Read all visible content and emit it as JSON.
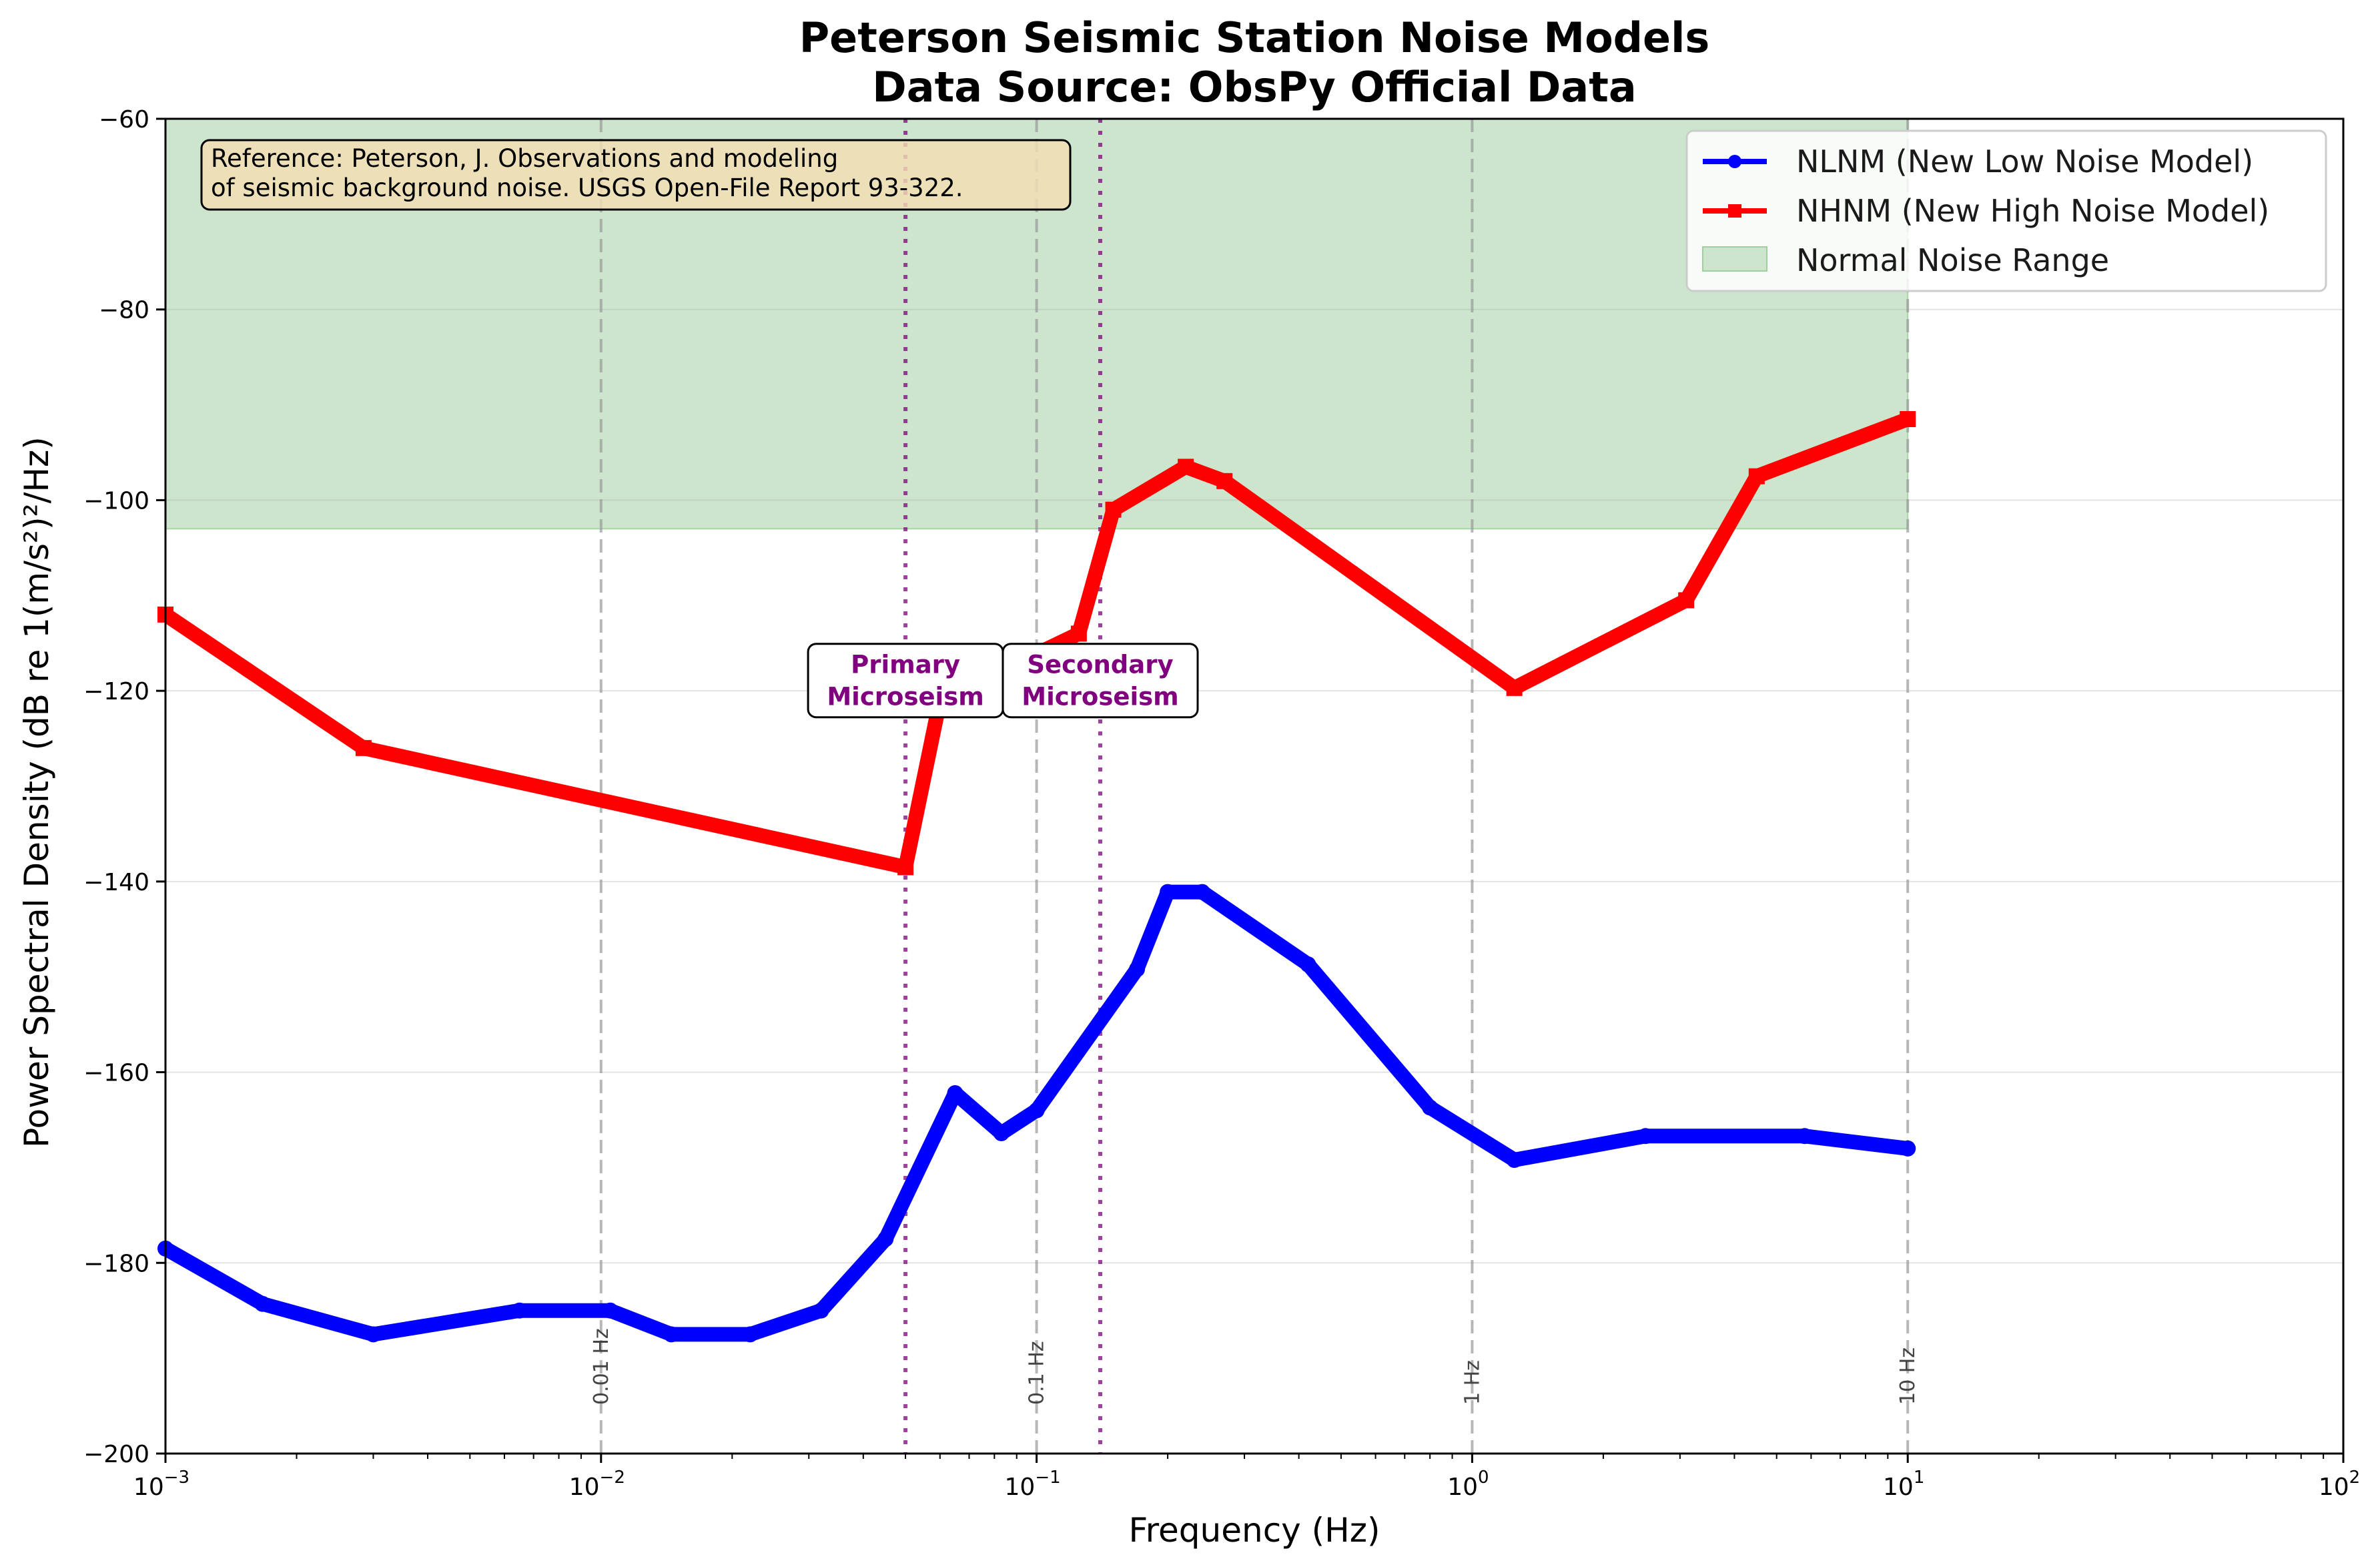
{
  "chart_data": {
    "type": "line",
    "title": "Peterson Seismic Station Noise Models",
    "subtitle": "Data Source: ObsPy Official Data",
    "xlabel": "Frequency (Hz)",
    "ylabel": "Power Spectral Density (dB re 1(m/s²)²/Hz)",
    "xscale": "log",
    "xlim": [
      0.001,
      100
    ],
    "ylim": [
      -200,
      -60
    ],
    "x_tick_values": [
      0.001,
      0.01,
      0.1,
      1,
      10,
      100
    ],
    "x_tick_bases": [
      "10",
      "10",
      "10",
      "10",
      "10",
      "10"
    ],
    "x_tick_exponents": [
      "−3",
      "−2",
      "−1",
      "0",
      "1",
      "2"
    ],
    "y_ticks": [
      -200,
      -180,
      -160,
      -140,
      -120,
      -100,
      -80,
      -60
    ],
    "y_tick_labels": [
      "−200",
      "−180",
      "−160",
      "−140",
      "−120",
      "−100",
      "−80",
      "−60"
    ],
    "grid": "horizontal",
    "legend_position": "top-right",
    "series": [
      {
        "name": "NLNM (New Low Noise Model)",
        "color": "#0000ff",
        "marker": "circle",
        "x": [
          0.001,
          0.00167,
          0.003,
          0.0065,
          0.0105,
          0.0145,
          0.022,
          0.032,
          0.045,
          0.065,
          0.083,
          0.1,
          0.17,
          0.2,
          0.24,
          0.42,
          0.8,
          1.25,
          2.5,
          5.8,
          10
        ],
        "y": [
          -178.5,
          -184.3,
          -187.5,
          -185.0,
          -185.0,
          -187.5,
          -187.5,
          -185.0,
          -177.5,
          -162.2,
          -166.4,
          -164.0,
          -149.2,
          -141.1,
          -141.1,
          -148.7,
          -163.7,
          -169.2,
          -166.7,
          -166.7,
          -168.0
        ]
      },
      {
        "name": "NHNM (New High Noise Model)",
        "color": "#ff0000",
        "marker": "square",
        "x": [
          0.001,
          0.00285,
          0.05,
          0.06,
          0.125,
          0.15,
          0.22,
          0.27,
          1.25,
          3.1,
          4.5,
          10
        ],
        "y": [
          -112.0,
          -126.0,
          -138.5,
          -121.0,
          -114.0,
          -101.0,
          -96.5,
          -98.0,
          -119.7,
          -110.5,
          -97.5,
          -91.5
        ]
      }
    ],
    "normal_range": {
      "name": "Normal Noise Range",
      "x": [
        0.001,
        10
      ],
      "y": [
        -103,
        -60
      ],
      "color": "#cce5cc"
    },
    "reference_lines": [
      {
        "x": 0.01,
        "label": "0.01 Hz"
      },
      {
        "x": 0.1,
        "label": "0.1 Hz"
      },
      {
        "x": 1,
        "label": "1 Hz"
      },
      {
        "x": 10,
        "label": "10 Hz"
      }
    ],
    "microseism_lines": [
      {
        "x": 0.05,
        "label_lines": [
          "Primary",
          "Microseism"
        ]
      },
      {
        "x": 0.14,
        "label_lines": [
          "Secondary",
          "Microseism"
        ]
      }
    ],
    "annotation_y": -118.5,
    "reference_note": [
      "Reference: Peterson, J. Observations and modeling",
      "of seismic background noise. USGS Open-File Report 93-322."
    ]
  }
}
